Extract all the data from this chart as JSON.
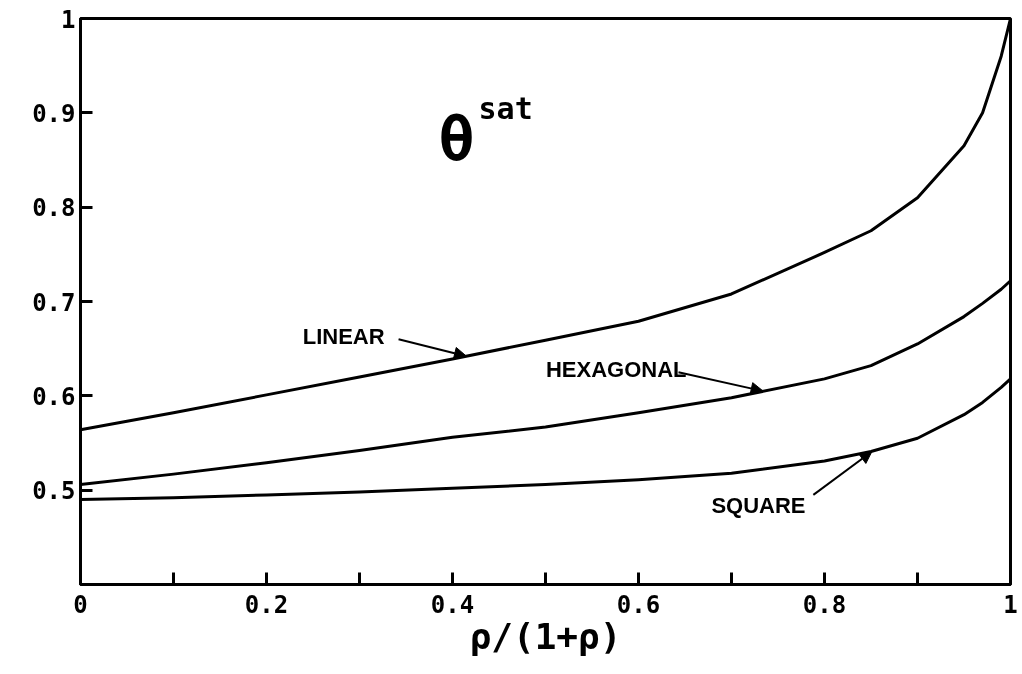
{
  "chart_data": {
    "type": "line",
    "xlabel": "ρ/(1+ρ)",
    "x": [
      0,
      0.1,
      0.2,
      0.3,
      0.4,
      0.5,
      0.6,
      0.7,
      0.8,
      0.85,
      0.9,
      0.95,
      0.97,
      0.99,
      1
    ],
    "series": [
      {
        "color": "#000000",
        "values": [
          0.564,
          0.582,
          0.601,
          0.62,
          0.639,
          0.659,
          0.679,
          0.708,
          0.752,
          0.775,
          0.81,
          0.865,
          0.9,
          0.96,
          1.0
        ]
      },
      {
        "color": "#000000",
        "values": [
          0.506,
          0.517,
          0.529,
          0.542,
          0.556,
          0.567,
          0.582,
          0.598,
          0.618,
          0.632,
          0.655,
          0.684,
          0.698,
          0.713,
          0.722
        ]
      },
      {
        "color": "#000000",
        "values": [
          0.49,
          0.492,
          0.495,
          0.498,
          0.502,
          0.506,
          0.511,
          0.518,
          0.531,
          0.541,
          0.555,
          0.58,
          0.593,
          0.609,
          0.618
        ]
      }
    ],
    "xlim": [
      0,
      1
    ],
    "ylim": [
      0.4,
      1
    ],
    "xticks": [
      0,
      {
        "value": 0.1,
        "label": null
      },
      0.2,
      {
        "value": 0.3,
        "label": null
      },
      0.4,
      {
        "value": 0.5,
        "label": null
      },
      0.6,
      {
        "value": 0.7,
        "label": null
      },
      0.8,
      {
        "value": 0.9,
        "label": null
      },
      1
    ],
    "yticks": [
      0.5,
      0.6,
      0.7,
      0.8,
      0.9,
      1
    ],
    "annotations": [
      "θ$^{sat}$",
      {
        "text": "LINEAR",
        "x": 0.415,
        "y": 0.642
      },
      {
        "text": "HEXAGONAL",
        "x": 0.734,
        "y": 0.605
      },
      {
        "text": "SQUARE",
        "x": 0.851,
        "y": 0.541
      }
    ],
    "grid": false,
    "marker": "none",
    "line_style": "solid"
  }
}
